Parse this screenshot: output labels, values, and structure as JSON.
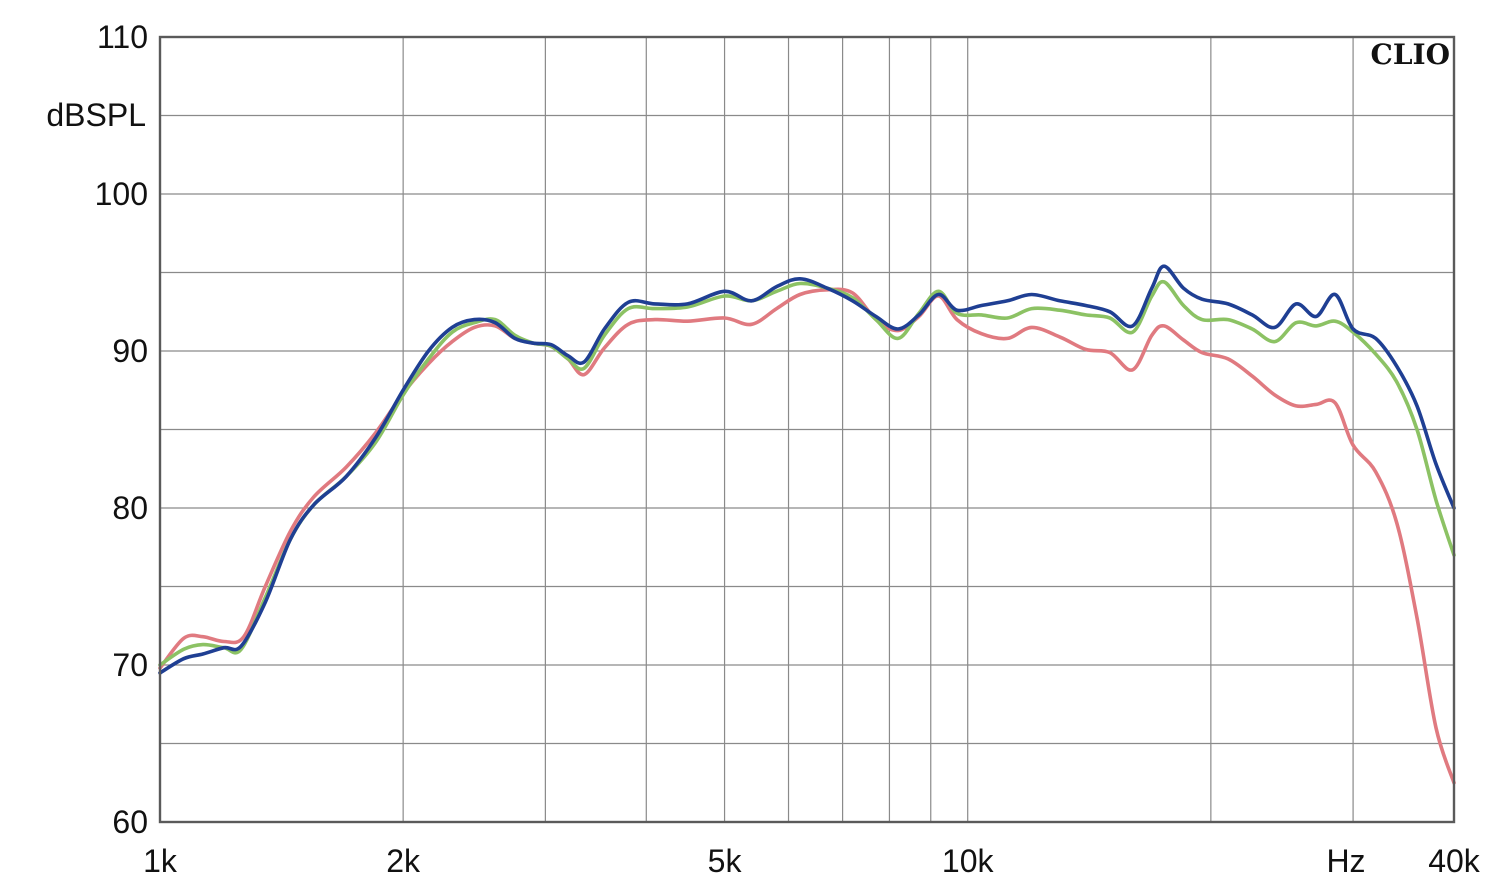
{
  "chart_data": {
    "type": "line",
    "brand": "CLIO",
    "ylabel": "dBSPL",
    "xunit": "Hz",
    "xscale": "log",
    "xlim": [
      1000,
      40000
    ],
    "ylim": [
      60,
      110
    ],
    "grid": true,
    "x_ticks": [
      {
        "value": 1000,
        "label": "1k"
      },
      {
        "value": 2000,
        "label": "2k"
      },
      {
        "value": 5000,
        "label": "5k"
      },
      {
        "value": 10000,
        "label": "10k"
      },
      {
        "value": 40000,
        "label": "40k"
      }
    ],
    "x_gridlines": [
      2000,
      3000,
      4000,
      5000,
      6000,
      7000,
      8000,
      9000,
      10000,
      20000,
      30000
    ],
    "y_ticks": [
      {
        "value": 60,
        "label": "60"
      },
      {
        "value": 70,
        "label": "70"
      },
      {
        "value": 80,
        "label": "80"
      },
      {
        "value": 90,
        "label": "90"
      },
      {
        "value": 100,
        "label": "100"
      },
      {
        "value": 110,
        "label": "110"
      }
    ],
    "y_gridlines": [
      65,
      70,
      75,
      80,
      85,
      90,
      95,
      100,
      105
    ],
    "series": [
      {
        "color": "#e07a80",
        "points": [
          [
            1000,
            69.8
          ],
          [
            1070,
            71.7
          ],
          [
            1130,
            71.8
          ],
          [
            1200,
            71.5
          ],
          [
            1270,
            71.8
          ],
          [
            1350,
            75.0
          ],
          [
            1450,
            78.5
          ],
          [
            1550,
            80.7
          ],
          [
            1700,
            82.6
          ],
          [
            1850,
            84.8
          ],
          [
            2000,
            87.3
          ],
          [
            2150,
            89.2
          ],
          [
            2300,
            90.6
          ],
          [
            2450,
            91.5
          ],
          [
            2600,
            91.6
          ],
          [
            2750,
            90.8
          ],
          [
            2900,
            90.5
          ],
          [
            3050,
            90.3
          ],
          [
            3200,
            89.5
          ],
          [
            3350,
            88.5
          ],
          [
            3550,
            90.2
          ],
          [
            3800,
            91.7
          ],
          [
            4100,
            92.0
          ],
          [
            4500,
            91.9
          ],
          [
            5000,
            92.1
          ],
          [
            5400,
            91.7
          ],
          [
            5800,
            92.7
          ],
          [
            6200,
            93.6
          ],
          [
            6700,
            93.9
          ],
          [
            7200,
            93.7
          ],
          [
            7700,
            92.0
          ],
          [
            8200,
            91.3
          ],
          [
            8700,
            92.2
          ],
          [
            9200,
            93.5
          ],
          [
            9700,
            92.0
          ],
          [
            10400,
            91.1
          ],
          [
            11200,
            90.8
          ],
          [
            12000,
            91.5
          ],
          [
            13000,
            90.9
          ],
          [
            14000,
            90.1
          ],
          [
            15000,
            89.9
          ],
          [
            16000,
            88.8
          ],
          [
            16900,
            91.0
          ],
          [
            17500,
            91.6
          ],
          [
            18500,
            90.7
          ],
          [
            19500,
            89.9
          ],
          [
            21000,
            89.5
          ],
          [
            22500,
            88.4
          ],
          [
            24000,
            87.2
          ],
          [
            25500,
            86.5
          ],
          [
            27000,
            86.6
          ],
          [
            28500,
            86.7
          ],
          [
            30000,
            84.0
          ],
          [
            32000,
            82.3
          ],
          [
            34000,
            79.0
          ],
          [
            36000,
            73.0
          ],
          [
            38000,
            66.0
          ],
          [
            40000,
            62.5
          ]
        ]
      },
      {
        "color": "#8cc264",
        "points": [
          [
            1000,
            70.0
          ],
          [
            1070,
            71.0
          ],
          [
            1130,
            71.3
          ],
          [
            1200,
            71.1
          ],
          [
            1260,
            71.0
          ],
          [
            1350,
            74.3
          ],
          [
            1450,
            78.0
          ],
          [
            1550,
            80.2
          ],
          [
            1700,
            82.0
          ],
          [
            1850,
            84.2
          ],
          [
            2000,
            87.2
          ],
          [
            2150,
            89.5
          ],
          [
            2300,
            91.2
          ],
          [
            2450,
            91.8
          ],
          [
            2600,
            92.0
          ],
          [
            2750,
            91.0
          ],
          [
            2900,
            90.5
          ],
          [
            3050,
            90.3
          ],
          [
            3200,
            89.5
          ],
          [
            3350,
            88.9
          ],
          [
            3550,
            91.0
          ],
          [
            3800,
            92.7
          ],
          [
            4100,
            92.7
          ],
          [
            4500,
            92.8
          ],
          [
            5000,
            93.5
          ],
          [
            5400,
            93.2
          ],
          [
            5800,
            93.8
          ],
          [
            6200,
            94.3
          ],
          [
            6700,
            94.0
          ],
          [
            7200,
            93.4
          ],
          [
            7700,
            92.0
          ],
          [
            8200,
            90.8
          ],
          [
            8700,
            92.4
          ],
          [
            9200,
            93.8
          ],
          [
            9700,
            92.4
          ],
          [
            10400,
            92.3
          ],
          [
            11200,
            92.1
          ],
          [
            12000,
            92.7
          ],
          [
            13000,
            92.6
          ],
          [
            14000,
            92.3
          ],
          [
            15000,
            92.1
          ],
          [
            16000,
            91.2
          ],
          [
            16900,
            93.5
          ],
          [
            17500,
            94.4
          ],
          [
            18500,
            92.9
          ],
          [
            19500,
            92.0
          ],
          [
            21000,
            92.0
          ],
          [
            22500,
            91.4
          ],
          [
            24000,
            90.6
          ],
          [
            25500,
            91.8
          ],
          [
            27000,
            91.6
          ],
          [
            28500,
            91.9
          ],
          [
            30000,
            91.2
          ],
          [
            32000,
            89.8
          ],
          [
            34000,
            88.0
          ],
          [
            36000,
            85.0
          ],
          [
            38000,
            80.5
          ],
          [
            40000,
            77.0
          ]
        ]
      },
      {
        "color": "#1f3f93",
        "points": [
          [
            1000,
            69.5
          ],
          [
            1070,
            70.4
          ],
          [
            1130,
            70.7
          ],
          [
            1200,
            71.1
          ],
          [
            1260,
            71.2
          ],
          [
            1350,
            74.0
          ],
          [
            1450,
            78.0
          ],
          [
            1550,
            80.2
          ],
          [
            1700,
            82.0
          ],
          [
            1850,
            84.5
          ],
          [
            2000,
            87.5
          ],
          [
            2150,
            90.0
          ],
          [
            2300,
            91.5
          ],
          [
            2450,
            92.0
          ],
          [
            2600,
            91.8
          ],
          [
            2750,
            90.8
          ],
          [
            2900,
            90.5
          ],
          [
            3050,
            90.4
          ],
          [
            3200,
            89.7
          ],
          [
            3350,
            89.3
          ],
          [
            3550,
            91.4
          ],
          [
            3800,
            93.1
          ],
          [
            4100,
            93.0
          ],
          [
            4500,
            93.0
          ],
          [
            5000,
            93.8
          ],
          [
            5400,
            93.2
          ],
          [
            5800,
            94.1
          ],
          [
            6200,
            94.6
          ],
          [
            6700,
            94.0
          ],
          [
            7200,
            93.2
          ],
          [
            7700,
            92.2
          ],
          [
            8200,
            91.4
          ],
          [
            8700,
            92.3
          ],
          [
            9200,
            93.6
          ],
          [
            9700,
            92.6
          ],
          [
            10400,
            92.9
          ],
          [
            11200,
            93.2
          ],
          [
            12000,
            93.6
          ],
          [
            13000,
            93.2
          ],
          [
            14000,
            92.9
          ],
          [
            15000,
            92.5
          ],
          [
            16000,
            91.6
          ],
          [
            16900,
            94.0
          ],
          [
            17500,
            95.4
          ],
          [
            18500,
            94.0
          ],
          [
            19500,
            93.3
          ],
          [
            21000,
            93.0
          ],
          [
            22500,
            92.3
          ],
          [
            24000,
            91.5
          ],
          [
            25500,
            93.0
          ],
          [
            27000,
            92.2
          ],
          [
            28500,
            93.6
          ],
          [
            30000,
            91.4
          ],
          [
            32000,
            90.8
          ],
          [
            34000,
            89.0
          ],
          [
            36000,
            86.5
          ],
          [
            38000,
            82.8
          ],
          [
            40000,
            80.0
          ]
        ]
      }
    ]
  }
}
